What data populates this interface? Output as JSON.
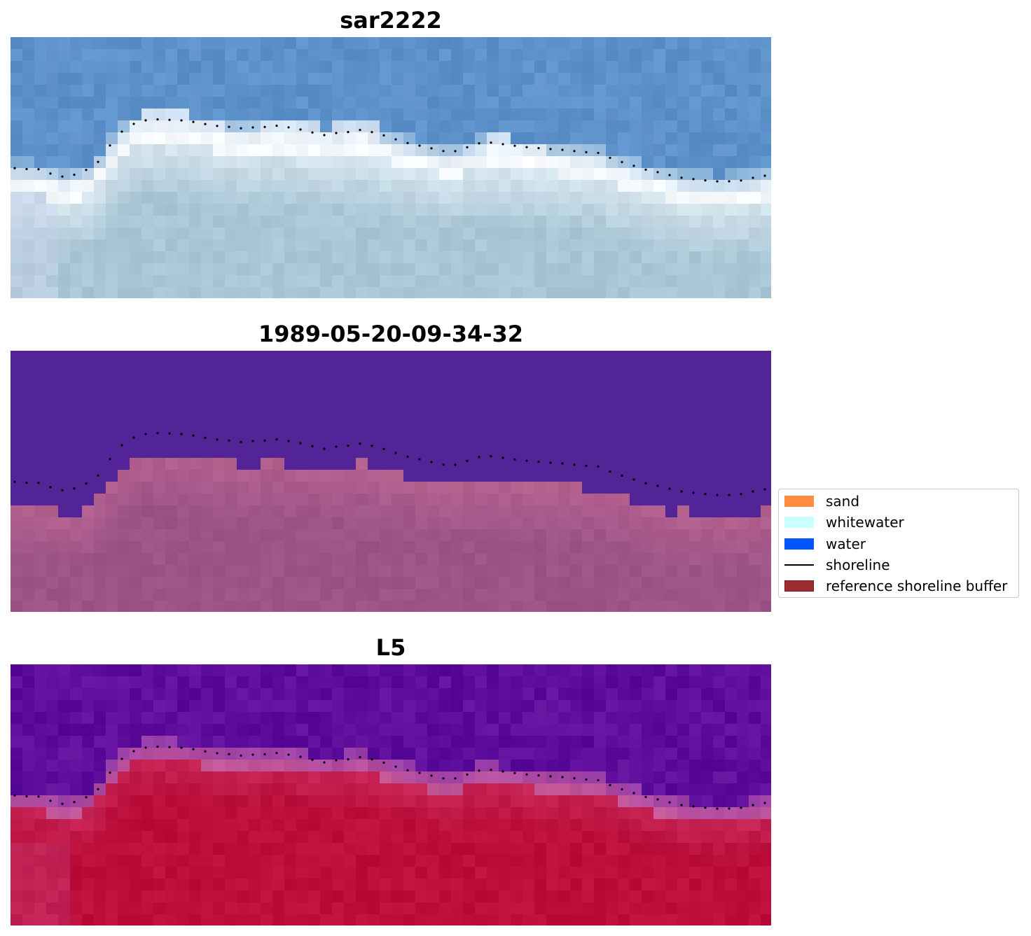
{
  "panels": [
    {
      "title": "sar2222",
      "image": "rgb-satellite-image"
    },
    {
      "title": "1989-05-20-09-34-32",
      "image": "classified-image"
    },
    {
      "title": "L5",
      "image": "index-image"
    }
  ],
  "legend": {
    "items": [
      {
        "label": "sand",
        "color": "#ff8c40",
        "kind": "patch"
      },
      {
        "label": "whitewater",
        "color": "#ccffff",
        "kind": "patch"
      },
      {
        "label": "water",
        "color": "#0055ff",
        "kind": "patch"
      },
      {
        "label": "shoreline",
        "color": "#000000",
        "kind": "line"
      },
      {
        "label": "reference shoreline buffer",
        "color": "#9b2d30",
        "kind": "patch"
      }
    ]
  },
  "colors": {
    "sar2222_water": "#5b8fc9",
    "sar2222_surf": "#f5f9fb",
    "sar2222_land": "#a9c6d6",
    "classified_water": "#532497",
    "classified_land": "#9c5488",
    "classified_land_light": "#b3608e",
    "l5_water": "#5a0a9a",
    "l5_land": "#bb0e3a",
    "shoreline_dots": "#000000"
  }
}
